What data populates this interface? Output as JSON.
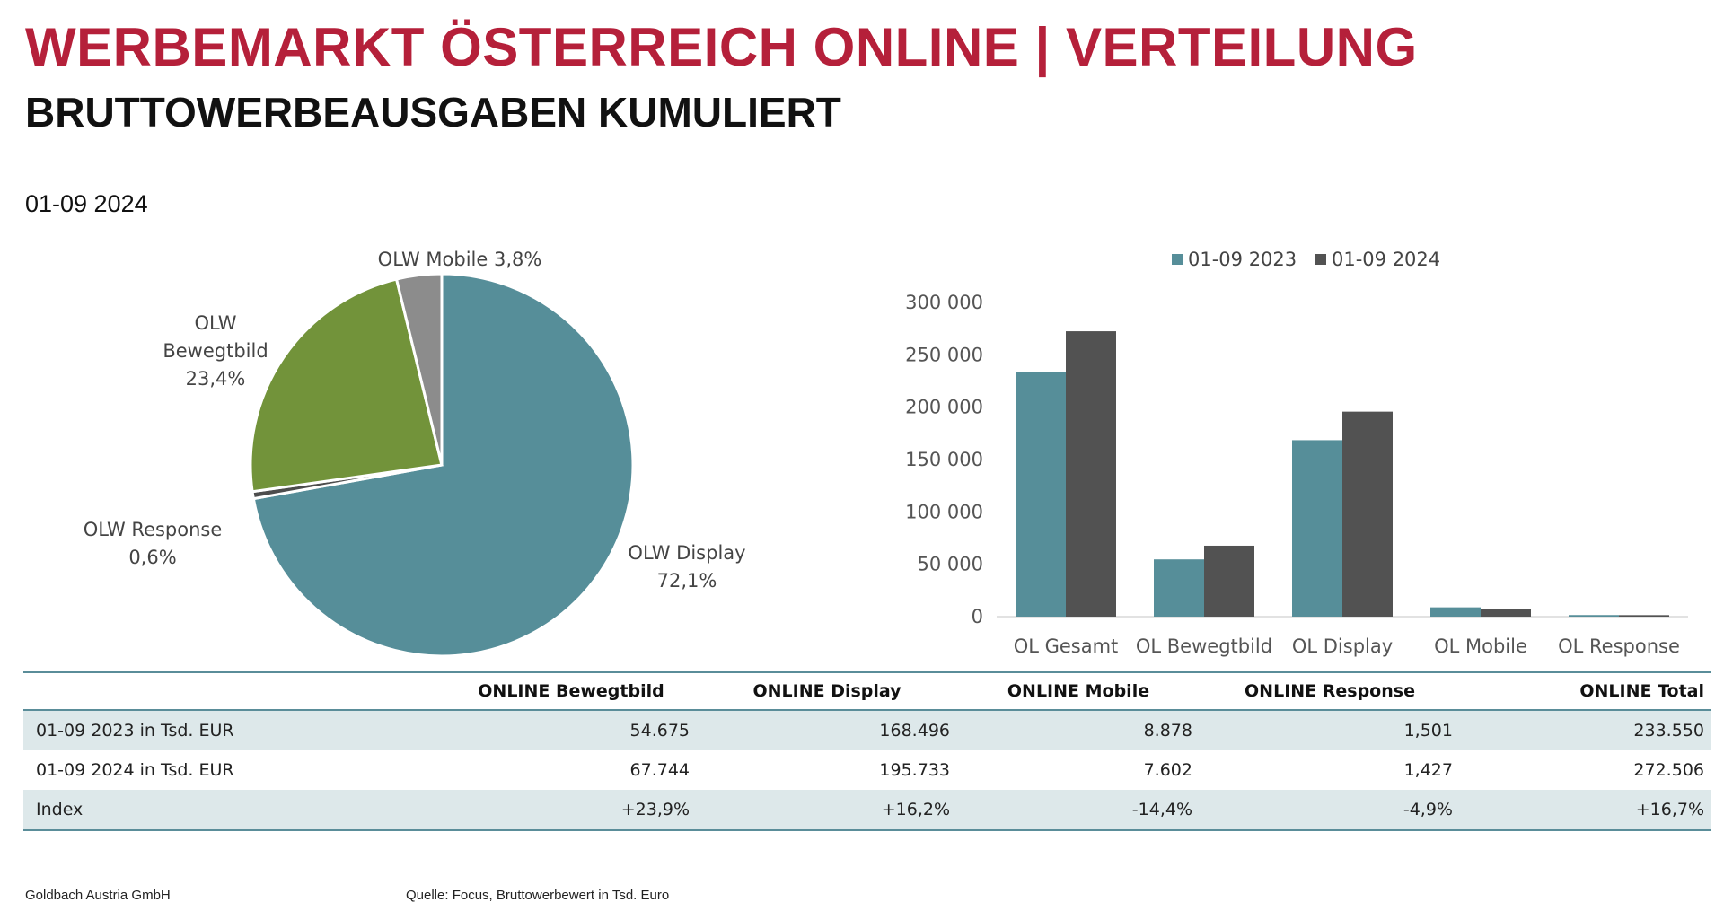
{
  "header": {
    "title": "WERBEMARKT ÖSTERREICH ONLINE | VERTEILUNG",
    "subtitle": "BRUTTOWERBEAUSGABEN KUMULIERT",
    "period": "01-09 2024"
  },
  "chart_data": [
    {
      "type": "pie",
      "title": "",
      "slices": [
        {
          "label": "OLW Display",
          "value": 72.1,
          "label_text": "72,1%",
          "color": "#568e99"
        },
        {
          "label": "OLW Response",
          "value": 0.6,
          "label_text": "0,6%",
          "color": "#4d4d4d"
        },
        {
          "label": "OLW Bewegtbild",
          "value": 23.4,
          "label_text": "23,4%",
          "color": "#72933a"
        },
        {
          "label": "OLW Mobile",
          "value": 3.8,
          "label_text": "3,8%",
          "color": "#8c8c8c"
        }
      ],
      "label_lines": {
        "display": [
          "OLW Display",
          "72,1%"
        ],
        "response": [
          "OLW Response",
          "0,6%"
        ],
        "bewegtbild": [
          "OLW",
          "Bewegtbild",
          "23,4%"
        ],
        "mobile": [
          "OLW Mobile 3,8%"
        ]
      }
    },
    {
      "type": "bar",
      "title": "",
      "categories": [
        "OL Gesamt",
        "OL Bewegtbild",
        "OL Display",
        "OL Mobile",
        "OL Response"
      ],
      "series": [
        {
          "name": "01-09 2023",
          "values": [
            233550,
            54675,
            168496,
            8878,
            1501
          ],
          "color": "#568e99"
        },
        {
          "name": "01-09 2024",
          "values": [
            272506,
            67744,
            195733,
            7602,
            1427
          ],
          "color": "#525252"
        }
      ],
      "ylim": [
        0,
        300000
      ],
      "yticks": [
        0,
        50000,
        100000,
        150000,
        200000,
        250000,
        300000
      ],
      "ytick_labels": [
        "0",
        "50 000",
        "100 000",
        "150 000",
        "200 000",
        "250 000",
        "300 000"
      ],
      "legend_position": "top",
      "grid": false
    }
  ],
  "table": {
    "headers": [
      "",
      "ONLINE Bewegtbild",
      "ONLINE Display",
      "ONLINE Mobile",
      "ONLINE Response",
      "ONLINE Total"
    ],
    "rows": [
      [
        "01-09 2023 in Tsd. EUR",
        "54.675",
        "168.496",
        "8.878",
        "1,501",
        "233.550"
      ],
      [
        "01-09 2024 in Tsd. EUR",
        "67.744",
        "195.733",
        "7.602",
        "1,427",
        "272.506"
      ],
      [
        "Index",
        "+23,9%",
        "+16,2%",
        "-14,4%",
        "-4,9%",
        "+16,7%"
      ]
    ]
  },
  "footer": {
    "company": "Goldbach Austria GmbH",
    "source": "Quelle: Focus, Bruttowerbewert in Tsd. Euro"
  }
}
